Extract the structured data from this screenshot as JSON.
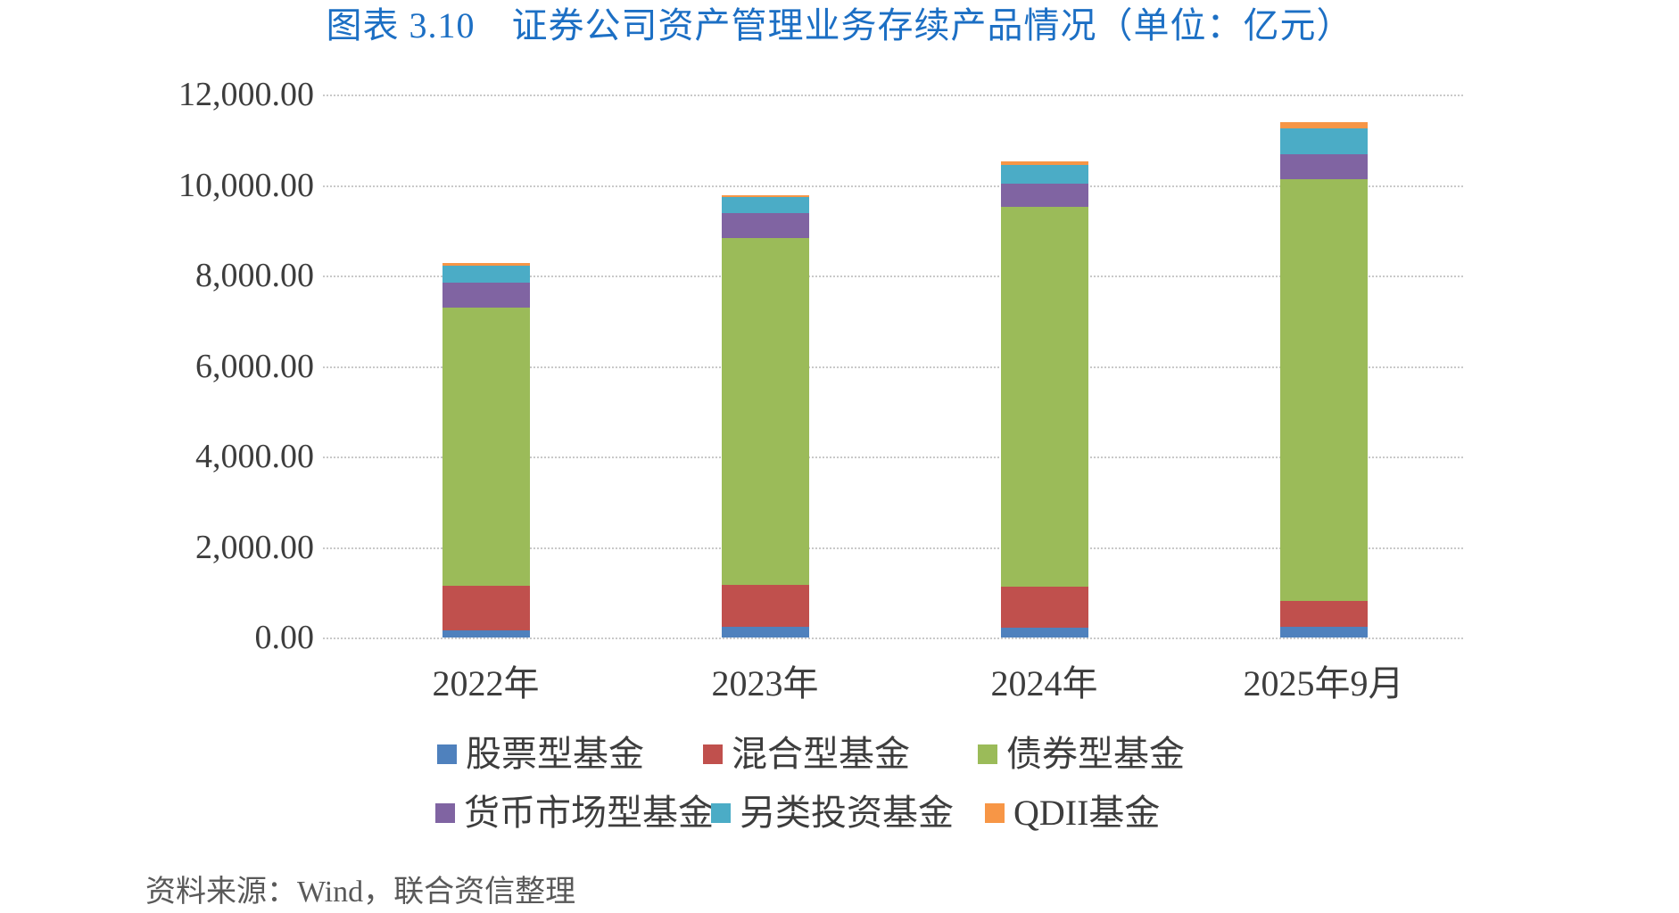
{
  "title": "图表 3.10　证券公司资产管理业务存续产品情况（单位：亿元）",
  "source_note": "资料来源：Wind，联合资信整理",
  "colors": {
    "title_blue": "#1C6FC4",
    "axis_text": "#3D3D3D",
    "gridline": "#C9C9C9",
    "source_text": "#595959"
  },
  "chart_data": {
    "type": "bar",
    "stacked": true,
    "title": "图表 3.10　证券公司资产管理业务存续产品情况（单位：亿元）",
    "unit": "亿元",
    "categories": [
      "2022年",
      "2023年",
      "2024年",
      "2025年9月"
    ],
    "series": [
      {
        "name": "股票型基金",
        "color": "#4F81BD",
        "values": [
          160,
          230,
          210,
          230
        ]
      },
      {
        "name": "混合型基金",
        "color": "#C0504D",
        "values": [
          990,
          930,
          920,
          585
        ]
      },
      {
        "name": "债券型基金",
        "color": "#9BBB59",
        "values": [
          6140,
          7660,
          8380,
          9320
        ]
      },
      {
        "name": "货币市场型基金",
        "color": "#8064A2",
        "values": [
          560,
          550,
          520,
          550
        ]
      },
      {
        "name": "另类投资基金",
        "color": "#4BACC6",
        "values": [
          375,
          360,
          415,
          565
        ]
      },
      {
        "name": "QDII基金",
        "color": "#F79646",
        "values": [
          55,
          45,
          85,
          145
        ]
      }
    ],
    "totals": [
      8280,
      9775,
      10530,
      11395
    ],
    "y_ticks": [
      "0.00",
      "2,000.00",
      "4,000.00",
      "6,000.00",
      "8,000.00",
      "10,000.00",
      "12,000.00"
    ],
    "ylim": [
      0,
      12000
    ],
    "xlabel": "",
    "ylabel": "",
    "grid": "horizontal-dotted",
    "legend_position": "bottom-two-rows"
  }
}
